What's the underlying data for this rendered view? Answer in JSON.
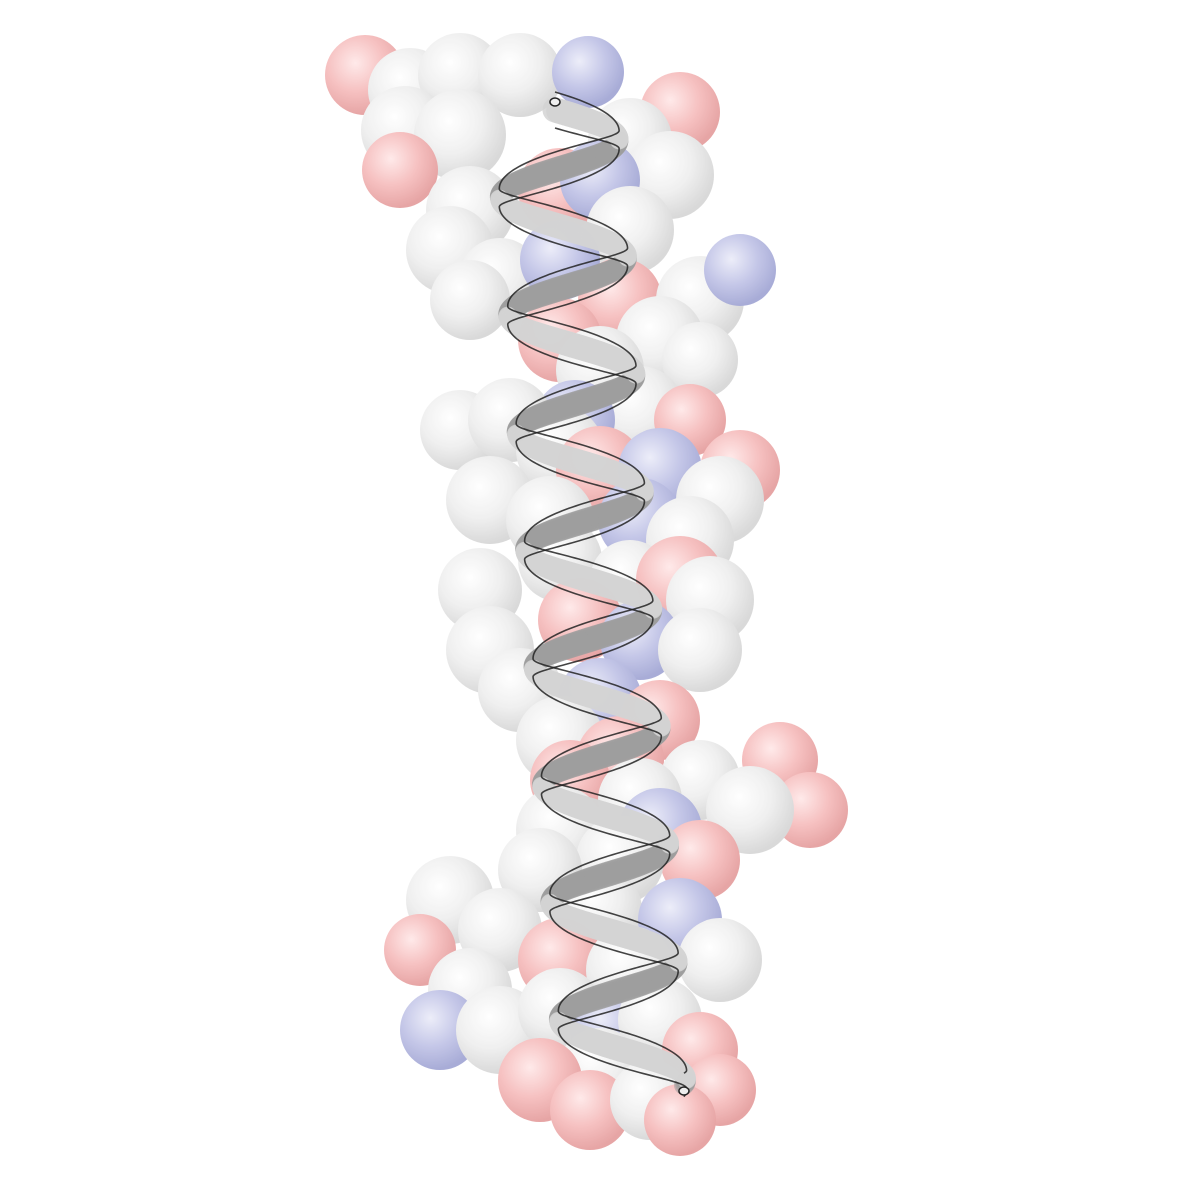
{
  "colors": {
    "background": "#ffffff",
    "carbon": "#d9d9d9",
    "oxygen": "#f2a0a0",
    "nitrogen": "#a8acd8",
    "ribbon": "#b9b9b9",
    "ribbon_outline": "#1a1a1a"
  },
  "molecule": {
    "representation": "cartoon-helix-over-transparent-spheres",
    "secondary_structure": "alpha-helix"
  }
}
